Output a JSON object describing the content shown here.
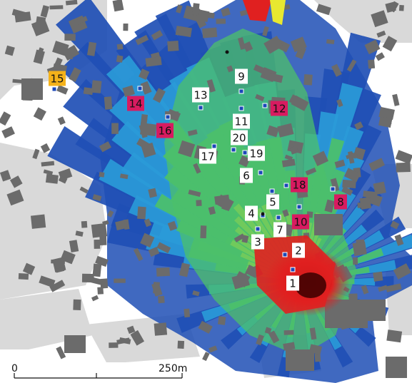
{
  "colors": {
    "background": "#ffffff",
    "ground": "#d9d9d9",
    "building": "#6b6b6b",
    "coverage_outer": "#1f4fb5",
    "coverage_mid": "#2a9ad8",
    "coverage_inner": "#4cc06a",
    "coverage_high": "#e8e830",
    "coverage_peak": "#e02020",
    "label_white": "#ffffff",
    "label_magenta": "#d81b60",
    "label_orange": "#f5b21a",
    "receiver_dot": "#1a47b8"
  },
  "markers": [
    {
      "id": "1",
      "style": "white"
    },
    {
      "id": "2",
      "style": "white"
    },
    {
      "id": "3",
      "style": "white"
    },
    {
      "id": "4",
      "style": "white"
    },
    {
      "id": "5",
      "style": "white"
    },
    {
      "id": "6",
      "style": "white"
    },
    {
      "id": "7",
      "style": "white"
    },
    {
      "id": "8",
      "style": "magenta"
    },
    {
      "id": "9",
      "style": "white"
    },
    {
      "id": "10",
      "style": "magenta"
    },
    {
      "id": "11",
      "style": "white"
    },
    {
      "id": "12",
      "style": "magenta"
    },
    {
      "id": "13",
      "style": "white"
    },
    {
      "id": "14",
      "style": "magenta"
    },
    {
      "id": "15",
      "style": "orange"
    },
    {
      "id": "16",
      "style": "magenta"
    },
    {
      "id": "17",
      "style": "white"
    },
    {
      "id": "18",
      "style": "magenta"
    },
    {
      "id": "19",
      "style": "white"
    },
    {
      "id": "20",
      "style": "white"
    }
  ],
  "scale_bar": {
    "start_label": "0",
    "end_label": "250m"
  }
}
